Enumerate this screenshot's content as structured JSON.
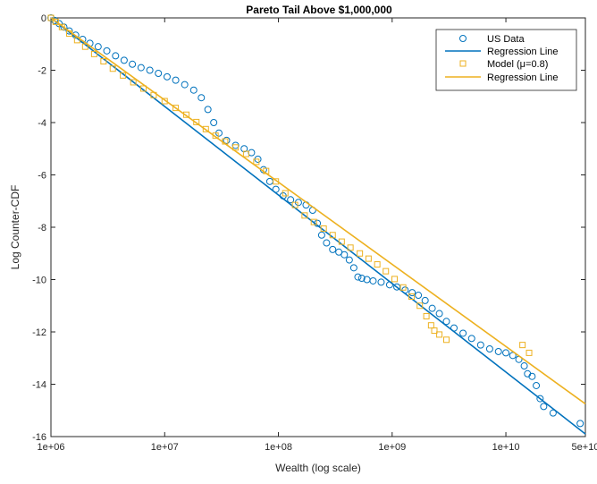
{
  "chart_data": {
    "type": "scatter",
    "title": "Pareto Tail Above $1,000,000",
    "xlabel": "Wealth (log scale)",
    "ylabel": "Log Counter-CDF",
    "x_scale": "log",
    "xlim": [
      1000000,
      50000000000
    ],
    "ylim": [
      -16,
      0
    ],
    "x_ticks": [
      1000000,
      10000000,
      100000000,
      1000000000,
      10000000000,
      50000000000
    ],
    "x_tick_labels": [
      "1e+06",
      "1e+07",
      "1e+08",
      "1e+09",
      "1e+10",
      "5e+10"
    ],
    "y_ticks": [
      0,
      -2,
      -4,
      -6,
      -8,
      -10,
      -12,
      -14,
      -16
    ],
    "y_tick_labels": [
      "0",
      "-2",
      "-4",
      "-6",
      "-8",
      "-10",
      "-12",
      "-14",
      "-16"
    ],
    "legend_position": "top-right",
    "colors": {
      "us": "#0072BD",
      "model": "#EDB120"
    },
    "series": [
      {
        "name": "US Data",
        "kind": "markers",
        "marker": "circle",
        "color": "#0072BD",
        "points": [
          [
            1000000,
            0
          ],
          [
            1080000,
            -0.1
          ],
          [
            1180000,
            -0.22
          ],
          [
            1300000,
            -0.35
          ],
          [
            1450000,
            -0.5
          ],
          [
            1650000,
            -0.66
          ],
          [
            1900000,
            -0.82
          ],
          [
            2200000,
            -0.97
          ],
          [
            2600000,
            -1.1
          ],
          [
            3100000,
            -1.26
          ],
          [
            3700000,
            -1.45
          ],
          [
            4400000,
            -1.62
          ],
          [
            5200000,
            -1.77
          ],
          [
            6200000,
            -1.9
          ],
          [
            7400000,
            -2.0
          ],
          [
            8800000,
            -2.12
          ],
          [
            10500000,
            -2.25
          ],
          [
            12500000,
            -2.38
          ],
          [
            15000000,
            -2.55
          ],
          [
            18000000,
            -2.76
          ],
          [
            21000000,
            -3.05
          ],
          [
            24000000,
            -3.5
          ],
          [
            27000000,
            -4.0
          ],
          [
            30000000,
            -4.4
          ],
          [
            35000000,
            -4.68
          ],
          [
            42000000,
            -4.87
          ],
          [
            50000000,
            -5.0
          ],
          [
            58000000,
            -5.15
          ],
          [
            66000000,
            -5.4
          ],
          [
            74000000,
            -5.8
          ],
          [
            84000000,
            -6.25
          ],
          [
            95000000,
            -6.55
          ],
          [
            110000000,
            -6.8
          ],
          [
            128000000,
            -6.95
          ],
          [
            150000000,
            -7.05
          ],
          [
            175000000,
            -7.15
          ],
          [
            200000000,
            -7.35
          ],
          [
            220000000,
            -7.85
          ],
          [
            240000000,
            -8.3
          ],
          [
            265000000,
            -8.6
          ],
          [
            300000000,
            -8.85
          ],
          [
            340000000,
            -8.95
          ],
          [
            380000000,
            -9.05
          ],
          [
            420000000,
            -9.25
          ],
          [
            460000000,
            -9.55
          ],
          [
            500000000,
            -9.9
          ],
          [
            540000000,
            -9.95
          ],
          [
            600000000,
            -10.0
          ],
          [
            680000000,
            -10.05
          ],
          [
            800000000,
            -10.1
          ],
          [
            950000000,
            -10.2
          ],
          [
            1100000000,
            -10.28
          ],
          [
            1300000000,
            -10.4
          ],
          [
            1500000000,
            -10.5
          ],
          [
            1700000000,
            -10.6
          ],
          [
            1950000000,
            -10.8
          ],
          [
            2250000000,
            -11.1
          ],
          [
            2600000000,
            -11.3
          ],
          [
            3000000000,
            -11.6
          ],
          [
            3500000000,
            -11.85
          ],
          [
            4200000000,
            -12.05
          ],
          [
            5000000000,
            -12.25
          ],
          [
            6000000000,
            -12.5
          ],
          [
            7200000000,
            -12.65
          ],
          [
            8600000000,
            -12.75
          ],
          [
            10000000000,
            -12.8
          ],
          [
            11500000000,
            -12.9
          ],
          [
            13000000000,
            -13.05
          ],
          [
            14500000000,
            -13.3
          ],
          [
            15500000000,
            -13.6
          ],
          [
            17000000000,
            -13.7
          ],
          [
            18500000000,
            -14.05
          ],
          [
            20000000000,
            -14.55
          ],
          [
            21500000000,
            -14.85
          ],
          [
            26000000000,
            -15.1
          ],
          [
            45000000000,
            -15.5
          ]
        ]
      },
      {
        "name": "Regression Line",
        "kind": "line",
        "color": "#0072BD",
        "points": [
          [
            1000000,
            0
          ],
          [
            50000000000,
            -15.9
          ]
        ]
      },
      {
        "name": "Model (μ=0.8)",
        "kind": "markers",
        "marker": "square",
        "color": "#EDB120",
        "points": [
          [
            1000000,
            0
          ],
          [
            1100000,
            -0.15
          ],
          [
            1250000,
            -0.35
          ],
          [
            1450000,
            -0.6
          ],
          [
            1700000,
            -0.85
          ],
          [
            2000000,
            -1.1
          ],
          [
            2400000,
            -1.38
          ],
          [
            2900000,
            -1.66
          ],
          [
            3500000,
            -1.94
          ],
          [
            4300000,
            -2.2
          ],
          [
            5300000,
            -2.46
          ],
          [
            6500000,
            -2.7
          ],
          [
            8000000,
            -2.95
          ],
          [
            10000000,
            -3.18
          ],
          [
            12500000,
            -3.44
          ],
          [
            15500000,
            -3.7
          ],
          [
            19000000,
            -3.98
          ],
          [
            23000000,
            -4.25
          ],
          [
            28000000,
            -4.5
          ],
          [
            34000000,
            -4.72
          ],
          [
            42000000,
            -4.95
          ],
          [
            52000000,
            -5.2
          ],
          [
            64000000,
            -5.5
          ],
          [
            78000000,
            -5.85
          ],
          [
            95000000,
            -6.25
          ],
          [
            115000000,
            -6.7
          ],
          [
            140000000,
            -7.15
          ],
          [
            170000000,
            -7.55
          ],
          [
            205000000,
            -7.8
          ],
          [
            250000000,
            -8.05
          ],
          [
            300000000,
            -8.3
          ],
          [
            360000000,
            -8.55
          ],
          [
            430000000,
            -8.78
          ],
          [
            520000000,
            -9.0
          ],
          [
            620000000,
            -9.2
          ],
          [
            740000000,
            -9.42
          ],
          [
            880000000,
            -9.68
          ],
          [
            1050000000,
            -9.98
          ],
          [
            1250000000,
            -10.3
          ],
          [
            1480000000,
            -10.65
          ],
          [
            1750000000,
            -11.0
          ],
          [
            2000000000,
            -11.4
          ],
          [
            2200000000,
            -11.75
          ],
          [
            2350000000,
            -11.95
          ],
          [
            2600000000,
            -12.1
          ],
          [
            3000000000,
            -12.3
          ],
          [
            14000000000,
            -12.5
          ],
          [
            16000000000,
            -12.8
          ]
        ]
      },
      {
        "name": "Regression Line",
        "kind": "line",
        "color": "#EDB120",
        "points": [
          [
            1000000,
            0
          ],
          [
            50000000000,
            -14.75
          ]
        ]
      }
    ]
  }
}
